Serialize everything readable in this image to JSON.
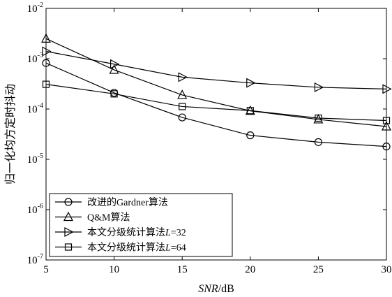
{
  "chart_data": {
    "type": "line",
    "xlabel": {
      "italic": "SNR",
      "rest": "/dB"
    },
    "ylabel": "归一化均方定时抖动",
    "xlim": [
      5,
      30
    ],
    "ylim": [
      1e-07,
      0.01
    ],
    "yscale": "log",
    "grid": false,
    "legend_position": "bottom-left",
    "xticks": [
      "5",
      "10",
      "15",
      "20",
      "25",
      "30"
    ],
    "yticks": [
      {
        "base": "10",
        "exp": "-7",
        "value": 1e-07
      },
      {
        "base": "10",
        "exp": "-6",
        "value": 1e-06
      },
      {
        "base": "10",
        "exp": "-5",
        "value": 1e-05
      },
      {
        "base": "10",
        "exp": "-4",
        "value": 0.0001
      },
      {
        "base": "10",
        "exp": "-3",
        "value": 0.001
      },
      {
        "base": "10",
        "exp": "-2",
        "value": 0.01
      }
    ],
    "x": [
      5,
      10,
      15,
      20,
      25,
      30
    ],
    "series": [
      {
        "name": "改进的Gardner算法",
        "marker": "circle",
        "label_parts": [
          {
            "t": "改进的"
          },
          {
            "t": "Gardner",
            "c": "lat"
          },
          {
            "t": "算法"
          }
        ],
        "values": [
          0.00082,
          0.00021,
          6.8e-05,
          3e-05,
          2.2e-05,
          1.8e-05
        ]
      },
      {
        "name": "Q&M算法",
        "marker": "triangle-up",
        "label_parts": [
          {
            "t": "Q&M",
            "c": "lat"
          },
          {
            "t": "算法"
          }
        ],
        "values": [
          0.0025,
          0.0006,
          0.00019,
          9.2e-05,
          6.2e-05,
          4.5e-05
        ]
      },
      {
        "name": "本文分级统计算法L=32",
        "marker": "triangle-right",
        "label_parts": [
          {
            "t": "本文分级统计算法"
          },
          {
            "t": "L",
            "c": "it"
          },
          {
            "t": "=32",
            "c": "lat"
          }
        ],
        "values": [
          0.0014,
          0.00078,
          0.00043,
          0.00033,
          0.00027,
          0.00025
        ]
      },
      {
        "name": "本文分级统计算法L=64",
        "marker": "square",
        "label_parts": [
          {
            "t": "本文分级统计算法"
          },
          {
            "t": "L",
            "c": "it"
          },
          {
            "t": "=64",
            "c": "lat"
          }
        ],
        "values": [
          0.00031,
          0.0002,
          0.000112,
          9.3e-05,
          6.6e-05,
          5.9e-05
        ]
      }
    ]
  }
}
